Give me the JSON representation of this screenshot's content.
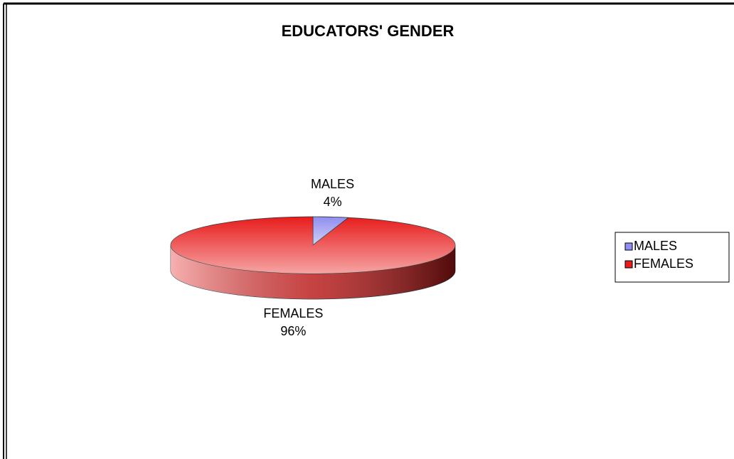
{
  "chart_data": {
    "type": "pie",
    "title": "EDUCATORS' GENDER",
    "categories": [
      "MALES",
      "FEMALES"
    ],
    "values": [
      4,
      96
    ],
    "value_labels": [
      "4%",
      "96%"
    ],
    "colors": [
      "#8e8ef0",
      "#e81c1c"
    ],
    "legend": "right",
    "three_d": true
  }
}
